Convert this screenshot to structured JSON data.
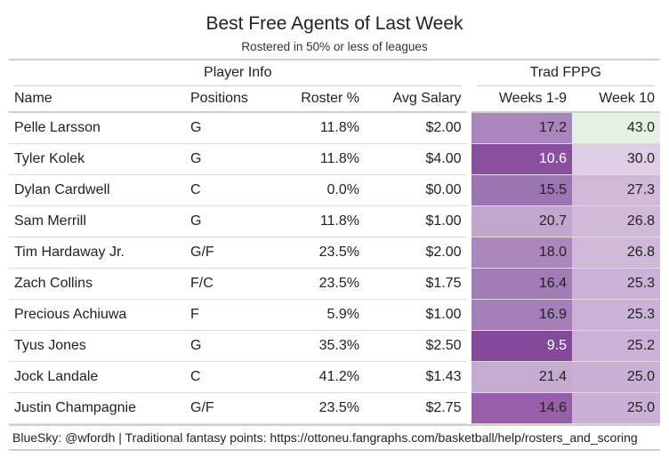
{
  "header": {
    "title": "Best Free Agents of Last Week",
    "subtitle": "Rostered in 50% or less of leagues"
  },
  "spanners": {
    "player_info": "Player Info",
    "trad_fppg": "Trad FPPG"
  },
  "columns": [
    "Name",
    "Positions",
    "Roster %",
    "Avg Salary",
    "Weeks 1-9",
    "Week 10"
  ],
  "rows": [
    {
      "name": "Pelle Larsson",
      "positions": "G",
      "roster": "11.8%",
      "salary": "$2.00",
      "w19": "17.2",
      "w10": "43.0"
    },
    {
      "name": "Tyler Kolek",
      "positions": "G",
      "roster": "11.8%",
      "salary": "$4.00",
      "w19": "10.6",
      "w10": "30.0"
    },
    {
      "name": "Dylan Cardwell",
      "positions": "C",
      "roster": "0.0%",
      "salary": "$0.00",
      "w19": "15.5",
      "w10": "27.3"
    },
    {
      "name": "Sam Merrill",
      "positions": "G",
      "roster": "11.8%",
      "salary": "$1.00",
      "w19": "20.7",
      "w10": "26.8"
    },
    {
      "name": "Tim Hardaway Jr.",
      "positions": "G/F",
      "roster": "23.5%",
      "salary": "$2.00",
      "w19": "18.0",
      "w10": "26.8"
    },
    {
      "name": "Zach Collins",
      "positions": "F/C",
      "roster": "23.5%",
      "salary": "$1.75",
      "w19": "16.4",
      "w10": "25.3"
    },
    {
      "name": "Precious Achiuwa",
      "positions": "F",
      "roster": "5.9%",
      "salary": "$1.00",
      "w19": "16.9",
      "w10": "25.3"
    },
    {
      "name": "Tyus Jones",
      "positions": "G",
      "roster": "35.3%",
      "salary": "$2.50",
      "w19": "9.5",
      "w10": "25.2"
    },
    {
      "name": "Jock Landale",
      "positions": "C",
      "roster": "41.2%",
      "salary": "$1.43",
      "w19": "21.4",
      "w10": "25.0"
    },
    {
      "name": "Justin Champagnie",
      "positions": "G/F",
      "roster": "23.5%",
      "salary": "$2.75",
      "w19": "14.6",
      "w10": "25.0"
    }
  ],
  "source_note": "BlueSky: @wfordh | Traditional fantasy points: https://ottoneu.fangraphs.com/basketball/help/rosters_and_scoring",
  "colors": {
    "weeks_1_9_cells": [
      "#a985bb",
      "#8a4f9f",
      "#9e75b3",
      "#c2a6cd",
      "#ac87bc",
      "#a27cb5",
      "#a580b8",
      "#834a9b",
      "#c6abd0",
      "#985fa9"
    ],
    "week_10_cells": [
      "#e5f1e2",
      "#e0cde6",
      "#d2b9da",
      "#d0b8d9",
      "#d0b8d9",
      "#cbb1d5",
      "#cbb1d5",
      "#cbb1d5",
      "#cab0d4",
      "#cab0d4"
    ],
    "text_dark": "#222222",
    "text_light": "#ffffff"
  },
  "chart_data": {
    "type": "table",
    "title": "Best Free Agents of Last Week",
    "subtitle": "Rostered in 50% or less of leagues",
    "column_groups": [
      {
        "label": "Player Info",
        "columns": [
          "Name",
          "Positions",
          "Roster %",
          "Avg Salary"
        ]
      },
      {
        "label": "Trad FPPG",
        "columns": [
          "Weeks 1-9",
          "Week 10"
        ]
      }
    ],
    "columns": [
      "Name",
      "Positions",
      "Roster %",
      "Avg Salary",
      "Weeks 1-9",
      "Week 10"
    ],
    "rows": [
      [
        "Pelle Larsson",
        "G",
        "11.8%",
        "$2.00",
        17.2,
        43.0
      ],
      [
        "Tyler Kolek",
        "G",
        "11.8%",
        "$4.00",
        10.6,
        30.0
      ],
      [
        "Dylan Cardwell",
        "C",
        "0.0%",
        "$0.00",
        15.5,
        27.3
      ],
      [
        "Sam Merrill",
        "G",
        "11.8%",
        "$1.00",
        20.7,
        26.8
      ],
      [
        "Tim Hardaway Jr.",
        "G/F",
        "23.5%",
        "$2.00",
        18.0,
        26.8
      ],
      [
        "Zach Collins",
        "F/C",
        "23.5%",
        "$1.75",
        16.4,
        25.3
      ],
      [
        "Precious Achiuwa",
        "F",
        "5.9%",
        "$1.00",
        16.9,
        25.3
      ],
      [
        "Tyus Jones",
        "G",
        "35.3%",
        "$2.50",
        9.5,
        25.2
      ],
      [
        "Jock Landale",
        "C",
        "41.2%",
        "$1.43",
        21.4,
        25.0
      ],
      [
        "Justin Champagnie",
        "G/F",
        "23.5%",
        "$2.75",
        14.6,
        25.0
      ]
    ],
    "source_note": "BlueSky: @wfordh | Traditional fantasy points: https://ottoneu.fangraphs.com/basketball/help/rosters_and_scoring"
  }
}
